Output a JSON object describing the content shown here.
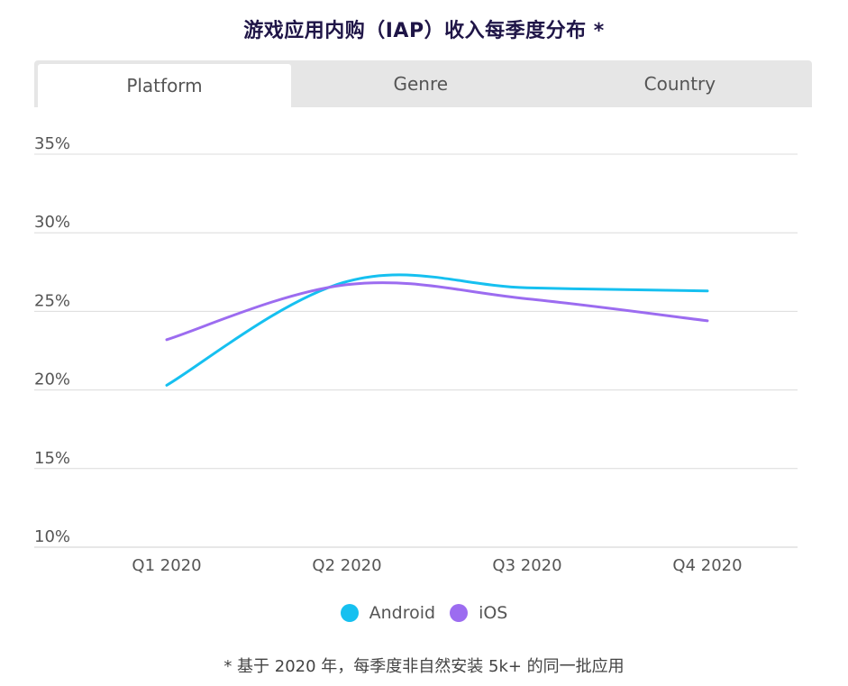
{
  "title": "游戏应用内购（IAP）收入每季度分布 *",
  "tabs": [
    {
      "label": "Platform",
      "active": true
    },
    {
      "label": "Genre",
      "active": false
    },
    {
      "label": "Country",
      "active": false
    }
  ],
  "footnote": "* 基于 2020 年，每季度非自然安装 5k+ 的同一批应用",
  "chart_data": {
    "type": "line",
    "title": "游戏应用内购（IAP）收入每季度分布 *",
    "xlabel": "",
    "ylabel": "",
    "categories": [
      "Q1 2020",
      "Q2 2020",
      "Q3 2020",
      "Q4 2020"
    ],
    "ylim": [
      10,
      35
    ],
    "y_ticks": [
      "35%",
      "30%",
      "25%",
      "20%",
      "15%",
      "10%"
    ],
    "y_tick_values": [
      35,
      30,
      25,
      20,
      15,
      10
    ],
    "grid": true,
    "legend_position": "bottom",
    "series": [
      {
        "name": "Android",
        "color": "#16c0f0",
        "values": [
          20.3,
          26.9,
          26.5,
          26.3
        ]
      },
      {
        "name": "iOS",
        "color": "#9c6cf0",
        "values": [
          23.2,
          26.7,
          25.8,
          24.4
        ]
      }
    ]
  }
}
